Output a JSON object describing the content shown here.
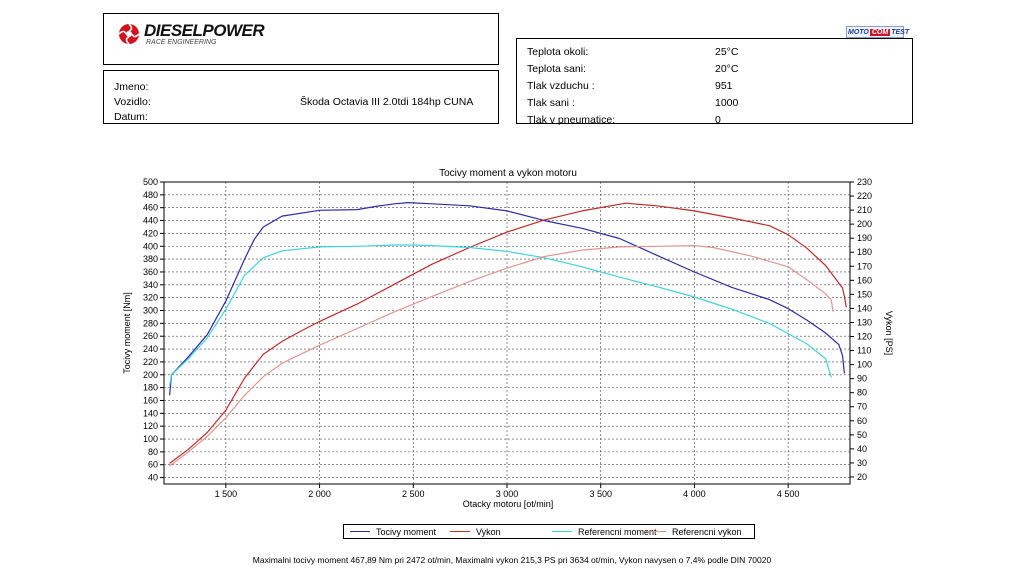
{
  "header": {
    "logo_text": "DIESELPOWER",
    "logo_sub": "RACE ENGINEERING",
    "badge": {
      "part1": "MOTO",
      "part2": "COM",
      "part3": "TEST"
    }
  },
  "vehicle_info": [
    {
      "label": "Jmeno:",
      "value": ""
    },
    {
      "label": "Vozidlo:",
      "value": "Škoda Octavia III 2.0tdi 184hp CUNA"
    },
    {
      "label": "Datum:",
      "value": ""
    }
  ],
  "conditions": [
    {
      "label": "Teplota okoli:",
      "value": "25°C"
    },
    {
      "label": "Teplota sani:",
      "value": "20°C"
    },
    {
      "label": "Tlak vzduchu :",
      "value": "951"
    },
    {
      "label": "Tlak sani :",
      "value": "1000"
    },
    {
      "label": "Tlak v pneumatice:",
      "value": "0"
    }
  ],
  "legend": {
    "s0": "Tocivy moment",
    "s1": "Vykon",
    "s2": "Referencni moment",
    "s3": "Referencni vykon"
  },
  "footer": "Maximalni tocivy moment 467,89 Nm pri 2472 ot/min,  Maximalni vykon 215,3 PS pri 3634 ot/min,  Vykon navysen o 7,4% podle DIN 70020",
  "chart_data": {
    "type": "line",
    "title": "Tocivy moment a vykon motoru",
    "xlabel": "Otacky motoru [ot/min]",
    "ylabel_left": "Tocivy moment [Nm]",
    "ylabel_right": "Vykon [PS]",
    "xlim": [
      1170,
      4830
    ],
    "ylim_left": [
      30,
      500
    ],
    "ylim_right": [
      15,
      230
    ],
    "x_ticks": [
      1500,
      2000,
      2500,
      3000,
      3500,
      4000,
      4500
    ],
    "x_tick_labels": [
      "1 500",
      "2 000",
      "2 500",
      "3 000",
      "3 500",
      "4 000",
      "4 500"
    ],
    "y_ticks_left": [
      40,
      60,
      80,
      100,
      120,
      140,
      160,
      180,
      200,
      220,
      240,
      260,
      280,
      300,
      320,
      340,
      360,
      380,
      400,
      420,
      440,
      460,
      480,
      500
    ],
    "y_ticks_right": [
      20,
      30,
      40,
      50,
      60,
      70,
      80,
      90,
      100,
      110,
      120,
      130,
      140,
      150,
      160,
      170,
      180,
      190,
      200,
      210,
      220,
      230
    ],
    "grid": true,
    "legend_position": "bottom",
    "series": [
      {
        "name": "Tocivy moment",
        "axis": "left",
        "color": "#2c2ca8",
        "x": [
          1200,
          1210,
          1300,
          1400,
          1500,
          1600,
          1650,
          1700,
          1800,
          2000,
          2200,
          2300,
          2400,
          2472,
          2600,
          2800,
          3000,
          3200,
          3400,
          3600,
          3800,
          4000,
          4200,
          4400,
          4500,
          4600,
          4700,
          4770,
          4790,
          4800
        ],
        "y": [
          168,
          200,
          228,
          262,
          315,
          380,
          410,
          430,
          447,
          456,
          457,
          462,
          466,
          468,
          466,
          463,
          455,
          440,
          428,
          412,
          386,
          360,
          336,
          317,
          303,
          285,
          265,
          247,
          230,
          202
        ]
      },
      {
        "name": "Vykon",
        "axis": "left",
        "color": "#c22a2a",
        "x": [
          1200,
          1300,
          1400,
          1500,
          1600,
          1700,
          1800,
          1900,
          2000,
          2200,
          2400,
          2600,
          2800,
          3000,
          3200,
          3400,
          3634,
          3800,
          4000,
          4200,
          4400,
          4500,
          4600,
          4700,
          4790,
          4800,
          4810
        ],
        "y": [
          62,
          84,
          110,
          145,
          195,
          232,
          252,
          268,
          283,
          310,
          341,
          372,
          398,
          422,
          441,
          455,
          467,
          463,
          455,
          444,
          432,
          418,
          397,
          370,
          335,
          322,
          305
        ]
      },
      {
        "name": "Referencni moment",
        "axis": "left",
        "color": "#3cd3dc",
        "x": [
          1200,
          1210,
          1300,
          1400,
          1500,
          1600,
          1700,
          1800,
          2000,
          2200,
          2400,
          2500,
          2600,
          2800,
          3000,
          3200,
          3400,
          3600,
          3800,
          4000,
          4200,
          4400,
          4600,
          4700,
          4720,
          4730
        ],
        "y": [
          183,
          200,
          225,
          257,
          302,
          355,
          382,
          393,
          399,
          400,
          402,
          402,
          401,
          398,
          392,
          382,
          368,
          352,
          337,
          321,
          302,
          280,
          248,
          225,
          205,
          196
        ]
      },
      {
        "name": "Referencni vykon",
        "axis": "left",
        "color": "#e0958f",
        "x": [
          1200,
          1300,
          1400,
          1500,
          1600,
          1700,
          1800,
          2000,
          2200,
          2400,
          2600,
          2800,
          3000,
          3200,
          3400,
          3600,
          3800,
          4000,
          4100,
          4300,
          4500,
          4600,
          4700,
          4730,
          4740
        ],
        "y": [
          58,
          80,
          104,
          133,
          168,
          197,
          218,
          246,
          272,
          298,
          322,
          345,
          366,
          384,
          394,
          399,
          400,
          401,
          398,
          385,
          368,
          348,
          326,
          316,
          298
        ]
      }
    ]
  }
}
